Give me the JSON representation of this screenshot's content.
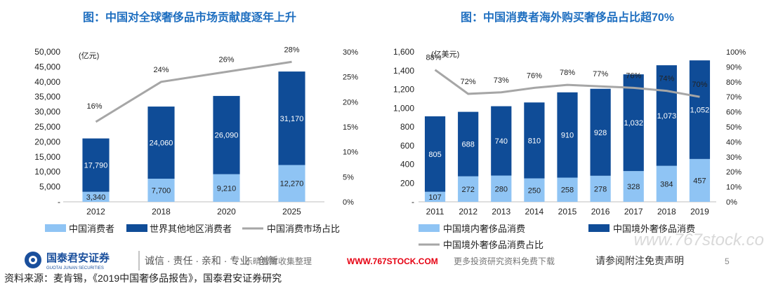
{
  "left_chart": {
    "title": "图：中国对全球奢侈品市场贡献度逐年上升",
    "unit": "(亿元)",
    "y_ticks": [
      "50,000",
      "45,000",
      "40,000",
      "35,000",
      "30,000",
      "25,000",
      "20,000",
      "15,000",
      "10,000",
      "5,000",
      "-"
    ],
    "y2_ticks": [
      "30%",
      "25%",
      "20%",
      "15%",
      "10%",
      "5%",
      "0%"
    ],
    "legend": [
      "中国消费者",
      "世界其他地区消费者",
      "中国消费市场占比"
    ]
  },
  "right_chart": {
    "title": "图：中国消费者海外购买奢侈品占比超70%",
    "unit": "(亿美元)",
    "y_ticks": [
      "1,600",
      "1,400",
      "1,200",
      "1,000",
      "800",
      "600",
      "400",
      "200",
      "-"
    ],
    "y2_ticks": [
      "100%",
      "90%",
      "80%",
      "70%",
      "60%",
      "50%",
      "40%",
      "30%",
      "20%",
      "10%",
      "0%"
    ],
    "legend": [
      "中国境内奢侈品消费",
      "中国境外奢侈品消费",
      "中国境外奢侈品消费占比"
    ]
  },
  "chart_data": [
    {
      "type": "bar",
      "stacked": true,
      "title": "图：中国对全球奢侈品市场贡献度逐年上升",
      "ylabel": "(亿元)",
      "categories": [
        "2012",
        "2018",
        "2020",
        "2025"
      ],
      "ylim": [
        0,
        50000
      ],
      "y2lim": [
        0,
        0.3
      ],
      "series": [
        {
          "name": "中国消费者",
          "kind": "bar",
          "values": [
            3340,
            7700,
            9210,
            12270
          ],
          "labels": [
            "3,340",
            "7,700",
            "9,210",
            "12,270"
          ]
        },
        {
          "name": "世界其他地区消费者",
          "kind": "bar",
          "values": [
            17790,
            24060,
            26090,
            31170
          ],
          "labels": [
            "17,790",
            "24,060",
            "26,090",
            "31,170"
          ]
        },
        {
          "name": "中国消费市场占比",
          "kind": "line",
          "axis": "right",
          "values": [
            0.16,
            0.24,
            0.26,
            0.28
          ],
          "labels": [
            "16%",
            "24%",
            "26%",
            "28%"
          ]
        }
      ],
      "legend_position": "bottom"
    },
    {
      "type": "bar",
      "stacked": true,
      "title": "图：中国消费者海外购买奢侈品占比超70%",
      "ylabel": "(亿美元)",
      "categories": [
        "2011",
        "2012",
        "2013",
        "2014",
        "2015",
        "2016",
        "2017",
        "2018",
        "2019"
      ],
      "ylim": [
        0,
        1600
      ],
      "y2lim": [
        0,
        1.0
      ],
      "series": [
        {
          "name": "中国境内奢侈品消费",
          "kind": "bar",
          "values": [
            107,
            272,
            280,
            250,
            258,
            278,
            328,
            384,
            457
          ],
          "labels": [
            "107",
            "272",
            "280",
            "250",
            "258",
            "278",
            "328",
            "384",
            "457"
          ]
        },
        {
          "name": "中国境外奢侈品消费",
          "kind": "bar",
          "values": [
            805,
            688,
            740,
            810,
            910,
            928,
            1032,
            1073,
            1052
          ],
          "labels": [
            "805",
            "688",
            "740",
            "810",
            "910",
            "928",
            "1,032",
            "1,073",
            "1,052"
          ]
        },
        {
          "name": "中国境外奢侈品消费占比",
          "kind": "line",
          "axis": "right",
          "values": [
            0.88,
            0.72,
            0.73,
            0.76,
            0.78,
            0.77,
            0.76,
            0.74,
            0.7
          ],
          "labels": [
            "88%",
            "72%",
            "73%",
            "76%",
            "78%",
            "77%",
            "76%",
            "74%",
            "70%"
          ]
        }
      ],
      "legend_position": "bottom"
    }
  ],
  "footer": {
    "logo_cn": "国泰君安证券",
    "logo_en": "GUOTAI JUNAN SECURITIES",
    "slogan": "诚信 · 责任 · 亲和 · 专业 · 创新",
    "watermark_mid": "乐晴智库收集整理",
    "watermark_url": "WWW.767STOCK.COM",
    "watermark_tail": "更多投资研究资料免费下载",
    "disclaimer": "请参阅附注免责声明",
    "page_number": "5",
    "source": "资料来源：麦肯锡，《2019中国奢侈品报告》，国泰君安证券研究",
    "corner_watermark": "www.767stock.co"
  },
  "colors": {
    "title": "#1f6fc0",
    "bar_light": "#8fc4f4",
    "bar_dark": "#0f4c97",
    "line": "#a6a6a6",
    "url_red": "#e60012"
  }
}
